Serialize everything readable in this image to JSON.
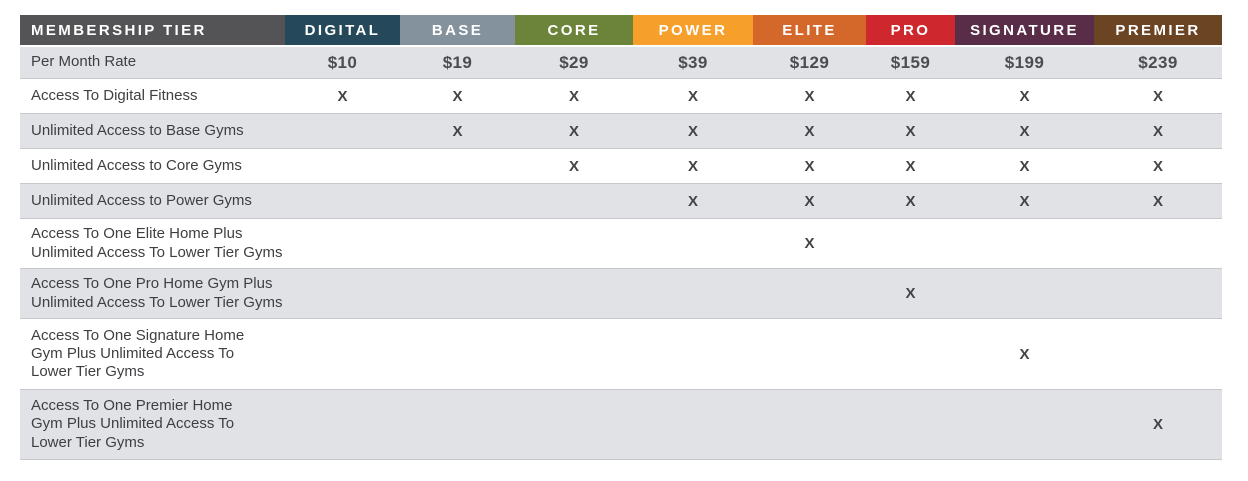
{
  "table": {
    "header": {
      "label": "MEMBERSHIP TIER",
      "bg": "#545456",
      "tiers": [
        {
          "name": "DIGITAL",
          "color": "#25495a"
        },
        {
          "name": "BASE",
          "color": "#84929d"
        },
        {
          "name": "CORE",
          "color": "#6b8439"
        },
        {
          "name": "POWER",
          "color": "#f6a02b"
        },
        {
          "name": "ELITE",
          "color": "#d4682a"
        },
        {
          "name": "PRO",
          "color": "#cf272e"
        },
        {
          "name": "SIGNATURE",
          "color": "#592c48"
        },
        {
          "name": "PREMIER",
          "color": "#6b4423"
        }
      ]
    },
    "rows": [
      {
        "label": "Per Month Rate",
        "cells": [
          "$10",
          "$19",
          "$29",
          "$39",
          "$129",
          "$159",
          "$199",
          "$239"
        ]
      },
      {
        "label": "Access To Digital Fitness",
        "cells": [
          "X",
          "X",
          "X",
          "X",
          "X",
          "X",
          "X",
          "X"
        ]
      },
      {
        "label": "Unlimited Access to Base Gyms",
        "cells": [
          "",
          "X",
          "X",
          "X",
          "X",
          "X",
          "X",
          "X"
        ]
      },
      {
        "label": "Unlimited Access to Core Gyms",
        "cells": [
          "",
          "",
          "X",
          "X",
          "X",
          "X",
          "X",
          "X"
        ]
      },
      {
        "label": "Unlimited Access to Power Gyms",
        "cells": [
          "",
          "",
          "",
          "X",
          "X",
          "X",
          "X",
          "X"
        ]
      },
      {
        "label": "Access To One Elite Home  Plus\nUnlimited Access To Lower Tier Gyms",
        "cells": [
          "",
          "",
          "",
          "",
          "X",
          "",
          "",
          ""
        ]
      },
      {
        "label": "Access To One Pro Home Gym Plus\nUnlimited Access To Lower Tier Gyms",
        "cells": [
          "",
          "",
          "",
          "",
          "",
          "X",
          "",
          ""
        ]
      },
      {
        "label": "Access To One Signature Home\nGym Plus Unlimited Access To\nLower Tier Gyms",
        "cells": [
          "",
          "",
          "",
          "",
          "",
          "",
          "X",
          ""
        ]
      },
      {
        "label": "Access To One Premier Home\nGym Plus Unlimited Access To\nLower Tier Gyms",
        "cells": [
          "",
          "",
          "",
          "",
          "",
          "",
          "",
          "X"
        ]
      }
    ]
  },
  "colors": {
    "row_shaded": "#e0e2e6",
    "row_border": "#c6c8cb",
    "header_text": "#ffffff",
    "label_text": "#3e3f41",
    "value_text": "#4c4d4f",
    "mark_text": "#434446"
  }
}
